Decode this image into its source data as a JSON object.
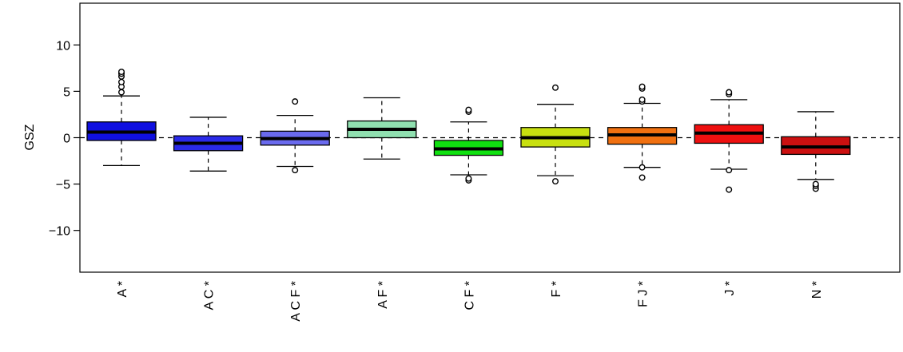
{
  "chart_data": {
    "type": "box",
    "ylabel": "GSZ",
    "xlabel": "",
    "ylim": [
      -14.5,
      14.5
    ],
    "yticks": [
      -10,
      -5,
      0,
      5,
      10
    ],
    "reference_line": 0,
    "categories": [
      "A*",
      "AC*",
      "ACF*",
      "AF*",
      "CF*",
      "F*",
      "FJ*",
      "J*",
      "N*"
    ],
    "category_labels": [
      "A *",
      "A C *",
      "A C F *",
      "A F *",
      "C F *",
      "F *",
      "F J *",
      "J *",
      "N *"
    ],
    "series": [
      {
        "whisker_low": -3.0,
        "q1": -0.3,
        "median": 0.6,
        "q3": 1.7,
        "whisker_high": 4.5,
        "outliers": [
          4.9,
          5.5,
          6.0,
          6.6,
          6.9,
          7.1
        ],
        "color": "#1010e0"
      },
      {
        "whisker_low": -3.6,
        "q1": -1.4,
        "median": -0.6,
        "q3": 0.2,
        "whisker_high": 2.2,
        "outliers": [],
        "color": "#2a2ae8"
      },
      {
        "whisker_low": -3.1,
        "q1": -0.8,
        "median": -0.1,
        "q3": 0.7,
        "whisker_high": 2.4,
        "outliers": [
          -3.5,
          3.9
        ],
        "color": "#6a6aee"
      },
      {
        "whisker_low": -2.3,
        "q1": 0.0,
        "median": 0.9,
        "q3": 1.8,
        "whisker_high": 4.3,
        "outliers": [],
        "color": "#90e0b0"
      },
      {
        "whisker_low": -4.0,
        "q1": -1.9,
        "median": -1.2,
        "q3": -0.3,
        "whisker_high": 1.7,
        "outliers": [
          -4.6,
          -4.4,
          2.8,
          3.0
        ],
        "color": "#10e010"
      },
      {
        "whisker_low": -4.1,
        "q1": -1.0,
        "median": 0.0,
        "q3": 1.1,
        "whisker_high": 3.6,
        "outliers": [
          -4.7,
          5.4
        ],
        "color": "#c8e010"
      },
      {
        "whisker_low": -3.2,
        "q1": -0.7,
        "median": 0.3,
        "q3": 1.1,
        "whisker_high": 3.7,
        "outliers": [
          -4.3,
          -3.2,
          3.9,
          4.1,
          5.3,
          5.5
        ],
        "color": "#f07010"
      },
      {
        "whisker_low": -3.4,
        "q1": -0.6,
        "median": 0.5,
        "q3": 1.4,
        "whisker_high": 4.1,
        "outliers": [
          -5.6,
          -3.5,
          4.7,
          4.9
        ],
        "color": "#ee1010"
      },
      {
        "whisker_low": -4.5,
        "q1": -1.8,
        "median": -1.0,
        "q3": 0.1,
        "whisker_high": 2.8,
        "outliers": [
          -5.5,
          -5.2,
          -5.0
        ],
        "color": "#cc1010"
      }
    ]
  }
}
